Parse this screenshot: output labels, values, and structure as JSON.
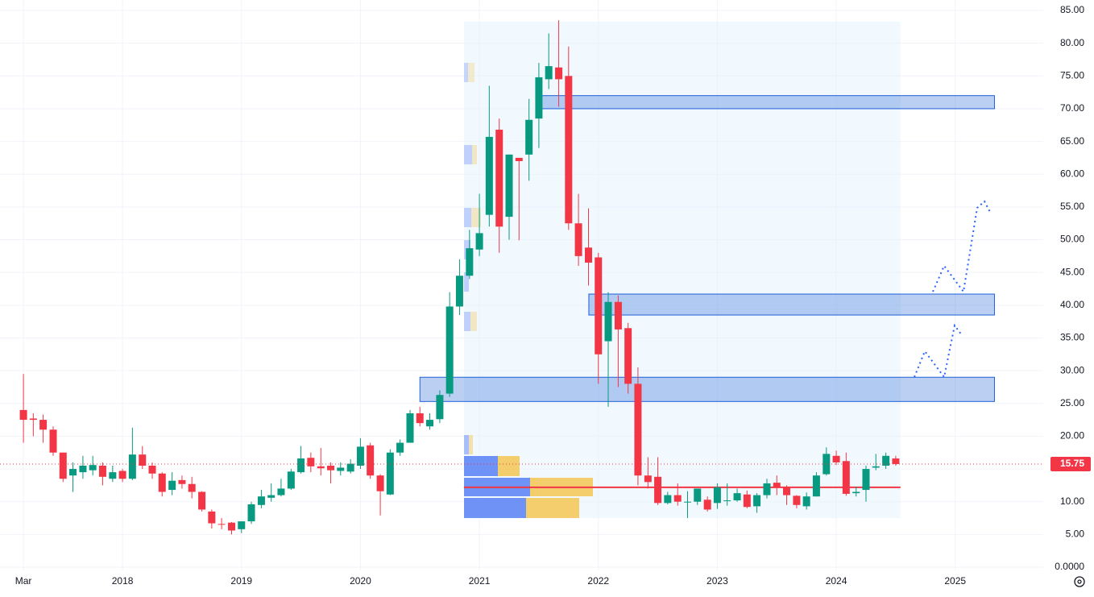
{
  "chart_data": {
    "type": "candlestick",
    "x": [
      2017.167,
      2017.25,
      2017.333,
      2017.417,
      2017.5,
      2017.583,
      2017.667,
      2017.75,
      2017.833,
      2017.917,
      2018,
      2018.083,
      2018.167,
      2018.25,
      2018.333,
      2018.417,
      2018.5,
      2018.583,
      2018.667,
      2018.75,
      2018.833,
      2018.917,
      2019,
      2019.083,
      2019.167,
      2019.25,
      2019.333,
      2019.417,
      2019.5,
      2019.583,
      2019.667,
      2019.75,
      2019.833,
      2019.917,
      2020,
      2020.083,
      2020.167,
      2020.25,
      2020.333,
      2020.417,
      2020.5,
      2020.583,
      2020.667,
      2020.75,
      2020.833,
      2020.917,
      2021,
      2021.083,
      2021.167,
      2021.25,
      2021.333,
      2021.417,
      2021.5,
      2021.583,
      2021.667,
      2021.75,
      2021.833,
      2021.917,
      2022,
      2022.083,
      2022.167,
      2022.25,
      2022.333,
      2022.417,
      2022.5,
      2022.583,
      2022.667,
      2022.75,
      2022.833,
      2022.917,
      2023,
      2023.083,
      2023.167,
      2023.25,
      2023.333,
      2023.417,
      2023.5,
      2023.583,
      2023.667,
      2023.75,
      2023.833,
      2023.917,
      2024,
      2024.083,
      2024.167,
      2024.25,
      2024.333,
      2024.417,
      2024.5
    ],
    "open": [
      24,
      22.7,
      22.5,
      21,
      17.5,
      14,
      14.5,
      14.8,
      15.5,
      13.5,
      14.7,
      13.5,
      17.2,
      15.5,
      14.3,
      11.8,
      13.3,
      12.7,
      11.5,
      8.5,
      6.6,
      6.8,
      5.8,
      7,
      9.5,
      10.6,
      11,
      12,
      14.5,
      16.7,
      15.4,
      15.5,
      14.7,
      14.6,
      15.5,
      18.6,
      14,
      11.1,
      17.5,
      19,
      23.5,
      21.5,
      22.6,
      26.5,
      39.8,
      44.5,
      48.5,
      53.8,
      66.8,
      53.5,
      62.5,
      63,
      68.5,
      74.5,
      76.3,
      75,
      52.5,
      48.8,
      47.3,
      34.5,
      40.5,
      36.5,
      28,
      14,
      13.8,
      9.8,
      11,
      9.9,
      10,
      10.3,
      9.8,
      10.1,
      10.2,
      11.1,
      9.3,
      11,
      12.9,
      12.3,
      10.9,
      9.3,
      10.8,
      14.2,
      17,
      16.2,
      11.3,
      11.8,
      15.2,
      15.5,
      16.6
    ],
    "high": [
      29.5,
      23.5,
      23.3,
      21.5,
      17.5,
      16,
      17,
      17,
      16,
      15.5,
      15,
      21.3,
      18.5,
      16,
      14.5,
      14.5,
      14,
      13.8,
      11.6,
      8.8,
      7.5,
      6.9,
      7,
      10,
      11.8,
      12.8,
      13.5,
      15,
      18.5,
      17.5,
      18.2,
      16,
      16,
      16.5,
      19.7,
      19,
      14.2,
      18,
      19.5,
      24,
      24.5,
      23.5,
      27,
      42,
      47,
      51.5,
      57,
      73.5,
      68.5,
      63,
      62.5,
      71.5,
      77,
      81.5,
      83.5,
      79.5,
      57,
      54.8,
      48,
      42,
      41.5,
      37.3,
      30.5,
      16.8,
      16.8,
      11.5,
      12.8,
      11.6,
      12,
      10.8,
      12.8,
      12.8,
      12,
      11.7,
      11.3,
      13.5,
      14,
      12.5,
      11,
      11.4,
      14.5,
      18.3,
      17.8,
      17.5,
      12.3,
      15.5,
      17.3,
      17.5,
      17
    ],
    "low": [
      19,
      20,
      19,
      17,
      13,
      11.5,
      13.5,
      14,
      12.5,
      13,
      13,
      13.3,
      15,
      13.5,
      10.8,
      11,
      12,
      10.5,
      8.5,
      5.9,
      5.8,
      5,
      5.2,
      6.6,
      9,
      10,
      10.8,
      11.8,
      14.3,
      14.5,
      14,
      12.8,
      14,
      14.3,
      15,
      13.5,
      7.9,
      11,
      17,
      19,
      21.5,
      21,
      22,
      26,
      38.5,
      44,
      47.5,
      52,
      48,
      50,
      49.9,
      59,
      64,
      73,
      70.3,
      51.5,
      46,
      43,
      28,
      24.5,
      27.5,
      26.5,
      12.5,
      12,
      9.5,
      9.6,
      9.4,
      7.5,
      9.5,
      8.5,
      8.9,
      9.4,
      10,
      9,
      8.3,
      10.5,
      11,
      9.5,
      9,
      8.8,
      10.8,
      14,
      15.6,
      10.9,
      10.8,
      10,
      14.8,
      15,
      15.5
    ],
    "close": [
      22.5,
      22.5,
      21,
      17.5,
      13.5,
      15,
      15.5,
      15.6,
      13.8,
      14.5,
      13.5,
      17.2,
      15.5,
      14.3,
      11.5,
      13.2,
      12.7,
      11.5,
      8.8,
      6.7,
      6.5,
      5.6,
      7,
      9.6,
      10.8,
      11,
      12,
      14.6,
      16.6,
      15.4,
      15.1,
      14.8,
      15.2,
      15.8,
      18.4,
      14,
      11.6,
      17.5,
      19,
      23.5,
      22,
      22.5,
      26.3,
      39.8,
      44.5,
      48.7,
      51,
      65.7,
      52,
      63,
      62,
      68.3,
      74.8,
      76.5,
      74.5,
      52.5,
      47.5,
      46.5,
      32.5,
      40.5,
      36.3,
      28,
      14,
      13,
      9.8,
      11,
      10,
      10,
      12,
      8.8,
      12.2,
      10.2,
      11.3,
      9.2,
      11,
      12.8,
      12.2,
      11,
      9.5,
      10.8,
      14,
      17.3,
      16,
      11.2,
      11.5,
      15,
      15.4,
      17,
      15.75
    ],
    "up_color": "#089981",
    "down_color": "#f23645",
    "zones": [
      {
        "low": 70,
        "high": 72,
        "x_start": 2021.51,
        "x_end": 2025.33
      },
      {
        "low": 38.5,
        "high": 41.7,
        "x_start": 2021.92,
        "x_end": 2025.33
      },
      {
        "low": 25.3,
        "high": 29,
        "x_start": 2020.5,
        "x_end": 2025.33
      }
    ],
    "zone_color": "#1e5fd8",
    "range": {
      "low": 7.5,
      "high": 83.3,
      "x_start": 2020.87,
      "x_end": 2024.54
    },
    "poc": 12.2,
    "xlim": [
      2016.97,
      2025.74
    ],
    "xticks": [
      {
        "value": 2017.167,
        "label": "Mar"
      },
      2018,
      2019,
      2020,
      2021,
      2022,
      2023,
      2024,
      2025
    ],
    "ylim": [
      0,
      85
    ],
    "yticks": [
      {
        "value": 0,
        "label": "0.0000"
      },
      {
        "value": 5,
        "label": "5.00"
      },
      {
        "value": 10,
        "label": "10.00"
      },
      {
        "value": 15,
        "label": "15.00"
      },
      {
        "value": 20,
        "label": "20.00"
      },
      {
        "value": 25,
        "label": "25.00"
      },
      {
        "value": 30,
        "label": "30.00"
      },
      {
        "value": 35,
        "label": "35.00"
      },
      {
        "value": 40,
        "label": "40.00"
      },
      {
        "value": 45,
        "label": "45.00"
      },
      {
        "value": 50,
        "label": "50.00"
      },
      {
        "value": 55,
        "label": "55.00"
      },
      {
        "value": 60,
        "label": "60.00"
      },
      {
        "value": 65,
        "label": "65.00"
      },
      {
        "value": 70,
        "label": "70.00"
      },
      {
        "value": 75,
        "label": "75.00"
      },
      {
        "value": 80,
        "label": "80.00"
      },
      {
        "value": 85,
        "label": "85.00"
      }
    ],
    "grid": true
  }
}
